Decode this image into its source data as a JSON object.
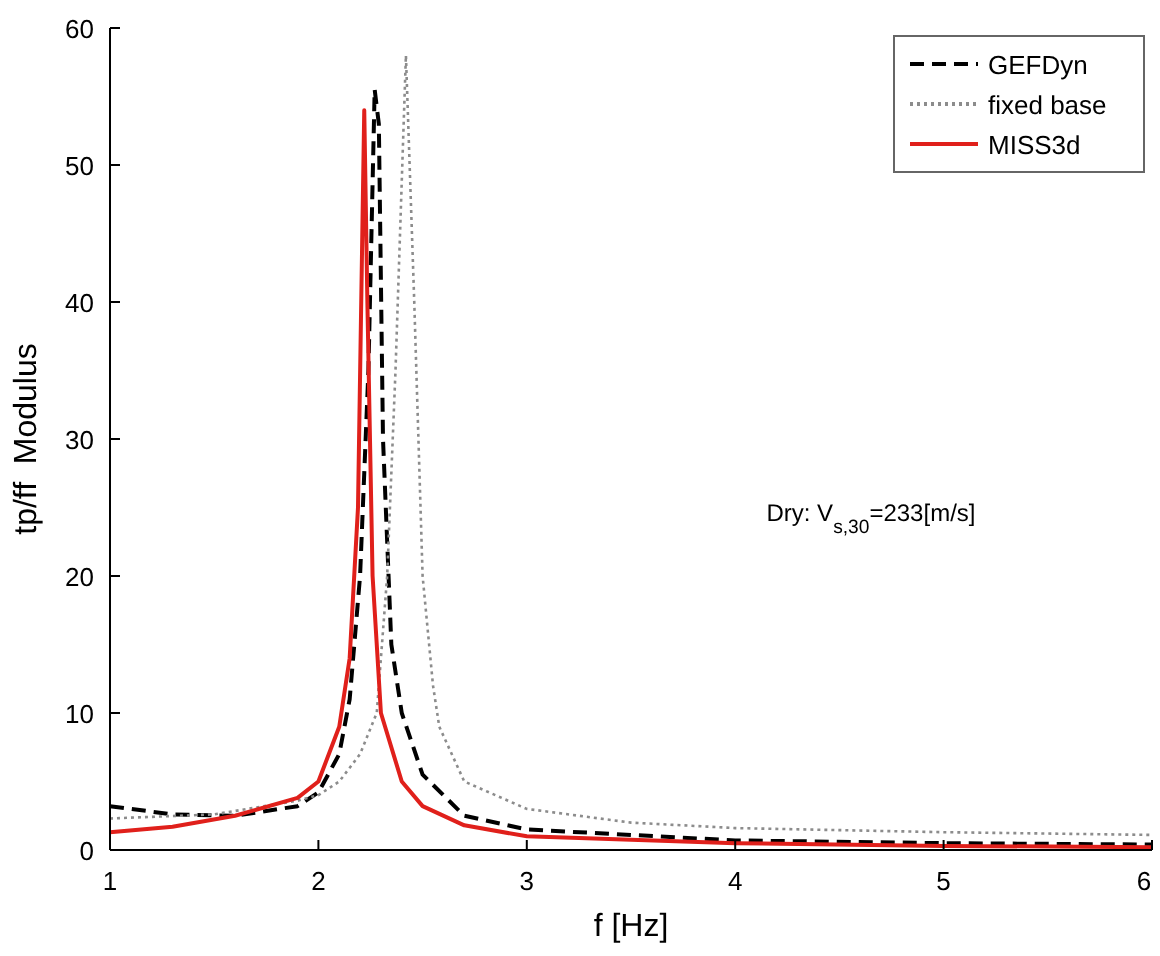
{
  "chart_data": {
    "type": "line",
    "xlabel": "f [Hz]",
    "ylabel": "tp/ff  Modulus",
    "xlim": [
      1,
      6
    ],
    "ylim": [
      0,
      60
    ],
    "xticks": [
      1,
      2,
      3,
      4,
      5,
      6
    ],
    "yticks": [
      0,
      10,
      20,
      30,
      40,
      50,
      60
    ],
    "grid": false,
    "legend": "top right",
    "annotations": [
      "Dry: V$_{s,30}$=233[m/s]"
    ],
    "series": [
      {
        "name": "GEFDyn",
        "color": "#000000",
        "line_style": "dashed",
        "x": [
          1,
          1.3,
          1.6,
          1.9,
          2.0,
          2.1,
          2.15,
          2.2,
          2.24,
          2.27,
          2.29,
          2.31,
          2.35,
          2.4,
          2.5,
          2.7,
          3,
          4,
          5,
          6
        ],
        "values": [
          3.2,
          2.6,
          2.5,
          3.2,
          4.2,
          7,
          11,
          20,
          35,
          55.5,
          53,
          30,
          15,
          10,
          5.5,
          2.5,
          1.5,
          0.7,
          0.5,
          0.4
        ]
      },
      {
        "name": "fixed base",
        "color": "#8c8c8c",
        "line_style": "dotted",
        "x": [
          1,
          1.5,
          1.9,
          2.0,
          2.1,
          2.2,
          2.28,
          2.33,
          2.37,
          2.42,
          2.46,
          2.5,
          2.55,
          2.58,
          2.7,
          3,
          3.5,
          4,
          5,
          6
        ],
        "values": [
          2.3,
          2.6,
          3.6,
          4,
          5,
          7,
          10,
          20,
          35,
          58,
          40,
          20,
          12,
          9,
          5,
          3,
          2,
          1.6,
          1.3,
          1.1
        ]
      },
      {
        "name": "MISS3d",
        "color": "#e0201b",
        "line_style": "solid",
        "x": [
          1,
          1.3,
          1.6,
          1.9,
          2.0,
          2.1,
          2.15,
          2.19,
          2.22,
          2.235,
          2.26,
          2.3,
          2.4,
          2.5,
          2.7,
          3,
          4,
          5,
          6
        ],
        "values": [
          1.3,
          1.7,
          2.5,
          3.8,
          5,
          9,
          14,
          25,
          54,
          40,
          20,
          10,
          5,
          3.2,
          1.8,
          1,
          0.5,
          0.3,
          0.2
        ]
      }
    ]
  }
}
